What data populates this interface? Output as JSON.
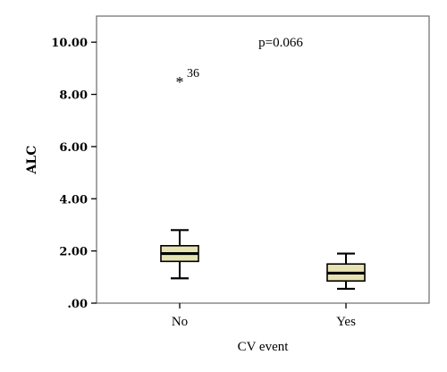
{
  "chart_data": {
    "type": "boxplot",
    "xlabel": "CV event",
    "ylabel": "ALC",
    "annotation": "p=0.066",
    "ylim": [
      0,
      11
    ],
    "y_ticks": [
      0,
      2,
      4,
      6,
      8,
      10
    ],
    "y_tick_labels": [
      ".00",
      "2.00",
      "4.00",
      "6.00",
      "8.00",
      "10.00"
    ],
    "categories": [
      "No",
      "Yes"
    ],
    "boxes": [
      {
        "category": "No",
        "min": 0.95,
        "q1": 1.6,
        "median": 1.9,
        "q3": 2.2,
        "max": 2.8,
        "outliers": [
          {
            "value": 8.6,
            "marker": "*",
            "label": "36"
          }
        ]
      },
      {
        "category": "Yes",
        "min": 0.55,
        "q1": 0.85,
        "median": 1.15,
        "q3": 1.5,
        "max": 1.9,
        "outliers": []
      }
    ],
    "colors": {
      "box_fill": "#e6e2b2",
      "plot_bg": "#ffffff",
      "frame": "#6b6b6b",
      "ink": "#000000"
    }
  }
}
